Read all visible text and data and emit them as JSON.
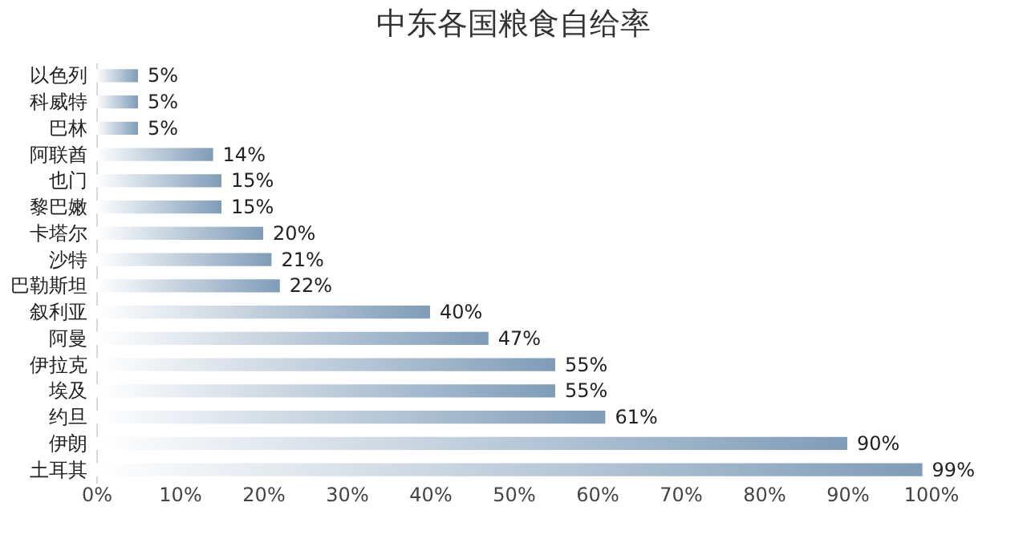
{
  "chart_data": {
    "type": "bar",
    "orientation": "horizontal",
    "title": "中东各国粮食自给率",
    "categories": [
      "以色列",
      "科威特",
      "巴林",
      "阿联酋",
      "也门",
      "黎巴嫩",
      "卡塔尔",
      "沙特",
      "巴勒斯坦",
      "叙利亚",
      "阿曼",
      "伊拉克",
      "埃及",
      "约旦",
      "伊朗",
      "土耳其"
    ],
    "values": [
      5,
      5,
      5,
      14,
      15,
      15,
      20,
      21,
      22,
      40,
      47,
      55,
      55,
      61,
      90,
      99
    ],
    "value_labels": [
      "5%",
      "5%",
      "5%",
      "14%",
      "15%",
      "15%",
      "20%",
      "21%",
      "22%",
      "40%",
      "47%",
      "55%",
      "55%",
      "61%",
      "90%",
      "99%"
    ],
    "color": "#7f9cb8",
    "xlim": [
      0,
      100
    ],
    "xticks": [
      {
        "value": 0,
        "label": "0%"
      },
      {
        "value": 10,
        "label": "10%"
      },
      {
        "value": 20,
        "label": "20%"
      },
      {
        "value": 30,
        "label": "30%"
      },
      {
        "value": 40,
        "label": "40%"
      },
      {
        "value": 50,
        "label": "50%"
      },
      {
        "value": 60,
        "label": "60%"
      },
      {
        "value": 70,
        "label": "70%"
      },
      {
        "value": 80,
        "label": "80%"
      },
      {
        "value": 90,
        "label": "90%"
      },
      {
        "value": 100,
        "label": "100%"
      }
    ],
    "grid": false
  }
}
